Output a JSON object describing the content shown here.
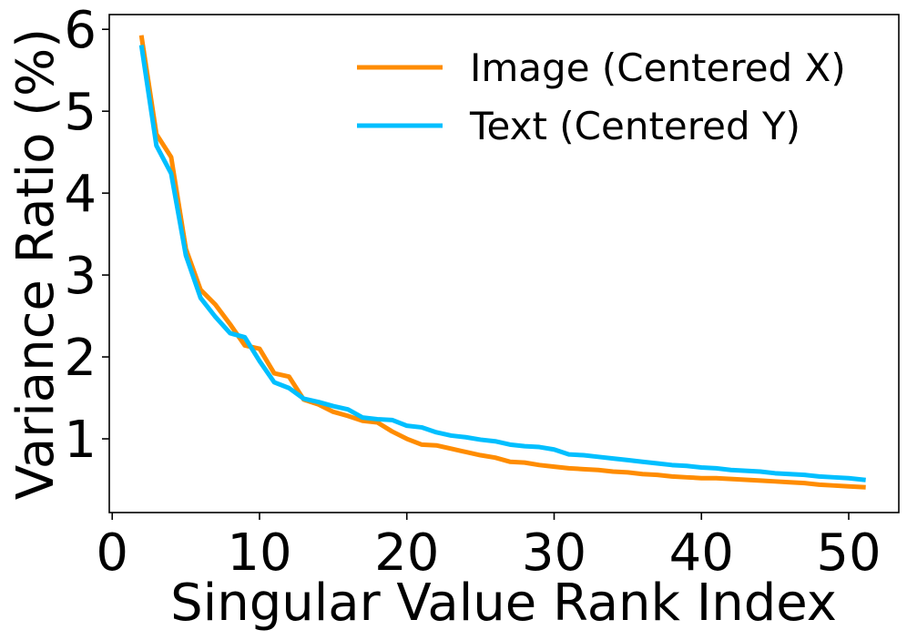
{
  "chart_data": {
    "type": "line",
    "title": "",
    "xlabel": "Singular Value Rank Index",
    "ylabel": "Variance Ratio (%)",
    "xlim": [
      -0.2,
      53.4
    ],
    "ylim": [
      0.1,
      6.18
    ],
    "xticks": [
      0,
      10,
      20,
      30,
      40,
      50
    ],
    "yticks": [
      1,
      2,
      3,
      4,
      5,
      6
    ],
    "xtick_labels": [
      "0",
      "10",
      "20",
      "30",
      "40",
      "50"
    ],
    "ytick_labels": [
      "1",
      "2",
      "3",
      "4",
      "5",
      "6"
    ],
    "grid": false,
    "legend_position": "upper right",
    "x": [
      2,
      3,
      4,
      5,
      6,
      7,
      8,
      9,
      10,
      11,
      12,
      13,
      14,
      15,
      16,
      17,
      18,
      19,
      20,
      21,
      22,
      23,
      24,
      25,
      26,
      27,
      28,
      29,
      30,
      31,
      32,
      33,
      34,
      35,
      36,
      37,
      38,
      39,
      40,
      41,
      42,
      43,
      44,
      45,
      46,
      47,
      48,
      49,
      50,
      51
    ],
    "series": [
      {
        "name": "Image (Centered X)",
        "color": "#ff8c00",
        "values": [
          5.9,
          4.72,
          4.44,
          3.32,
          2.82,
          2.64,
          2.4,
          2.14,
          2.1,
          1.8,
          1.76,
          1.48,
          1.42,
          1.33,
          1.28,
          1.22,
          1.2,
          1.09,
          1.0,
          0.93,
          0.92,
          0.88,
          0.84,
          0.8,
          0.77,
          0.72,
          0.71,
          0.68,
          0.66,
          0.64,
          0.63,
          0.62,
          0.6,
          0.59,
          0.57,
          0.56,
          0.54,
          0.53,
          0.52,
          0.52,
          0.51,
          0.5,
          0.49,
          0.48,
          0.47,
          0.46,
          0.44,
          0.43,
          0.42,
          0.41
        ]
      },
      {
        "name": "Text (Centered Y)",
        "color": "#00bfff",
        "values": [
          5.78,
          4.58,
          4.24,
          3.24,
          2.72,
          2.49,
          2.29,
          2.24,
          1.95,
          1.69,
          1.62,
          1.49,
          1.45,
          1.4,
          1.36,
          1.26,
          1.24,
          1.23,
          1.16,
          1.14,
          1.08,
          1.04,
          1.02,
          0.99,
          0.97,
          0.93,
          0.91,
          0.9,
          0.87,
          0.81,
          0.8,
          0.78,
          0.76,
          0.74,
          0.72,
          0.7,
          0.68,
          0.67,
          0.65,
          0.64,
          0.62,
          0.61,
          0.6,
          0.58,
          0.57,
          0.56,
          0.54,
          0.53,
          0.52,
          0.5
        ]
      }
    ]
  }
}
